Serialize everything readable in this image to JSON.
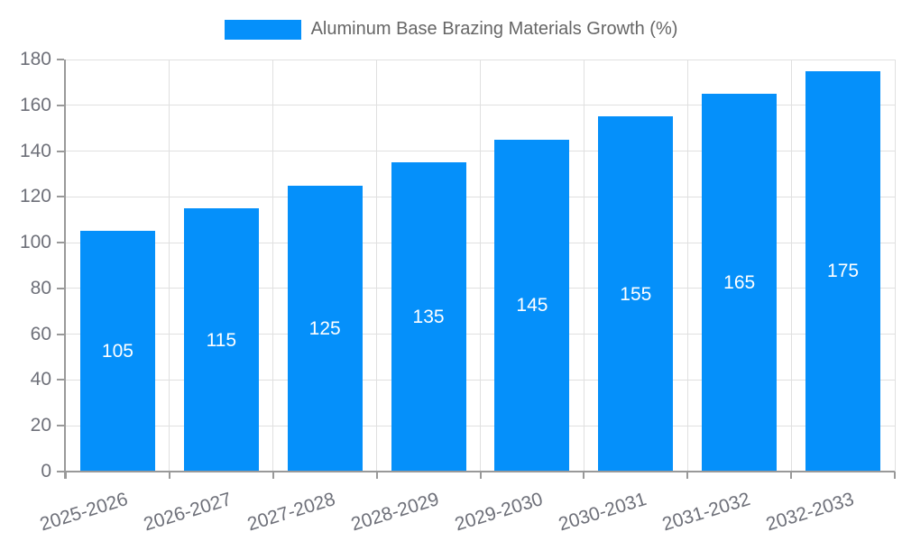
{
  "chart_data": {
    "type": "bar",
    "title": "",
    "legend_label": "Aluminum Base Brazing Materials Growth (%)",
    "legend_position": "top-center",
    "categories": [
      "2025-2026",
      "2026-2027",
      "2027-2028",
      "2028-2029",
      "2029-2030",
      "2030-2031",
      "2031-2032",
      "2032-2033"
    ],
    "values": [
      105,
      115,
      125,
      135,
      145,
      155,
      165,
      175
    ],
    "xlabel": "",
    "ylabel": "",
    "ylim": [
      0,
      180
    ],
    "yticks": [
      0,
      20,
      40,
      60,
      80,
      100,
      120,
      140,
      160,
      180
    ],
    "grid": "on",
    "bar_label_position": "inside-center",
    "colors": {
      "bar": "#0590FA",
      "bar_label": "#FFFFFF",
      "grid_line": "#E0E0E0",
      "axis_line": "#999999",
      "axis_label": "#6E7079",
      "legend_text": "#666666",
      "background": "#FFFFFF"
    }
  }
}
